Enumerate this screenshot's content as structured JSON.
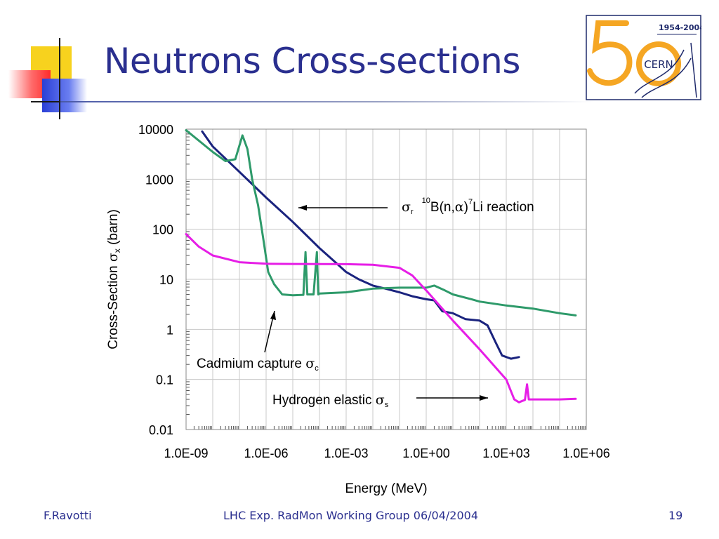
{
  "slide": {
    "title": "Neutrons Cross-sections",
    "footer_left": "F.Ravotti",
    "footer_center": "LHC Exp. RadMon Working Group 06/04/2004",
    "footer_right": "19",
    "title_color": "#2a2f8f",
    "title_rule_color": "#9aa2c4"
  },
  "logo": {
    "years": "1954-2004",
    "number": "50",
    "name": "CERN",
    "accent_color": "#f5a623",
    "ink_color": "#1f2a6b"
  },
  "chart_data": {
    "type": "line",
    "xlabel": "Energy (MeV)",
    "ylabel_main": "Cross-Section ",
    "ylabel_sym": "σ",
    "ylabel_sub": "x",
    "ylabel_tail": " (barn)",
    "x_scale": "log",
    "y_scale": "log",
    "xlim": [
      1e-09,
      1000000.0
    ],
    "ylim": [
      0.01,
      10000
    ],
    "grid": true,
    "x_ticks": [
      {
        "value": 1e-09,
        "label": "1.0E-09"
      },
      {
        "value": 1e-06,
        "label": "1.0E-06"
      },
      {
        "value": 0.001,
        "label": "1.0E-03"
      },
      {
        "value": 1,
        "label": "1.0E+00"
      },
      {
        "value": 1000.0,
        "label": "1.0E+03"
      },
      {
        "value": 1000000.0,
        "label": "1.0E+06"
      }
    ],
    "y_ticks": [
      {
        "value": 0.01,
        "label": "0.01"
      },
      {
        "value": 0.1,
        "label": "0.1"
      },
      {
        "value": 1,
        "label": "1"
      },
      {
        "value": 10,
        "label": "10"
      },
      {
        "value": 100,
        "label": "100"
      },
      {
        "value": 1000,
        "label": "1000"
      },
      {
        "value": 10000,
        "label": "10000"
      }
    ],
    "series": [
      {
        "color": "#1a237e",
        "points": [
          [
            4e-09,
            9000
          ],
          [
            1e-08,
            4500
          ],
          [
            1e-07,
            1400
          ],
          [
            1e-06,
            430
          ],
          [
            1e-05,
            140
          ],
          [
            0.0001,
            42
          ],
          [
            0.0003,
            25
          ],
          [
            0.001,
            14
          ],
          [
            0.003,
            10
          ],
          [
            0.01,
            7.5
          ],
          [
            0.03,
            6.5
          ],
          [
            0.1,
            5.5
          ],
          [
            0.3,
            4.6
          ],
          [
            1,
            4.0
          ],
          [
            2,
            3.8
          ],
          [
            4,
            2.3
          ],
          [
            10,
            2.1
          ],
          [
            30,
            1.6
          ],
          [
            100,
            1.5
          ],
          [
            200,
            1.2
          ],
          [
            400,
            0.55
          ],
          [
            700,
            0.3
          ],
          [
            1500,
            0.26
          ],
          [
            3000,
            0.28
          ]
        ]
      },
      {
        "color": "#2e9a6a",
        "points": [
          [
            1e-09,
            9500
          ],
          [
            1e-08,
            3500
          ],
          [
            3e-08,
            2300
          ],
          [
            7e-08,
            2500
          ],
          [
            1.3e-07,
            7500
          ],
          [
            2e-07,
            4000
          ],
          [
            3e-07,
            1000
          ],
          [
            5e-07,
            300
          ],
          [
            8e-07,
            60
          ],
          [
            1.2e-06,
            14
          ],
          [
            2e-06,
            8
          ],
          [
            4e-06,
            5
          ],
          [
            1e-05,
            4.8
          ],
          [
            2.5e-05,
            4.9
          ],
          [
            3e-05,
            35
          ],
          [
            3.5e-05,
            5
          ],
          [
            6e-05,
            5
          ],
          [
            8e-05,
            35
          ],
          [
            9e-05,
            5
          ],
          [
            0.0001,
            5.2
          ],
          [
            0.001,
            5.5
          ],
          [
            0.01,
            6.5
          ],
          [
            0.1,
            6.8
          ],
          [
            1,
            6.8
          ],
          [
            2,
            7.5
          ],
          [
            5,
            6
          ],
          [
            10,
            5
          ],
          [
            50,
            4
          ],
          [
            100,
            3.6
          ],
          [
            1000,
            3
          ],
          [
            10000,
            2.6
          ],
          [
            100000.0,
            2.1
          ],
          [
            400000.0,
            1.9
          ]
        ]
      },
      {
        "color": "#e61ee6",
        "points": [
          [
            1e-09,
            80
          ],
          [
            3e-09,
            45
          ],
          [
            1e-08,
            30
          ],
          [
            1e-07,
            22
          ],
          [
            1e-06,
            20.5
          ],
          [
            1e-05,
            20.3
          ],
          [
            0.0001,
            20.2
          ],
          [
            0.001,
            20.1
          ],
          [
            0.01,
            19.5
          ],
          [
            0.1,
            17
          ],
          [
            0.3,
            12
          ],
          [
            1,
            6
          ],
          [
            10,
            1.5
          ],
          [
            100,
            0.4
          ],
          [
            1000,
            0.1
          ],
          [
            2000,
            0.04
          ],
          [
            3000,
            0.035
          ],
          [
            5000,
            0.039
          ],
          [
            6000,
            0.08
          ],
          [
            7000,
            0.04
          ],
          [
            100000.0,
            0.04
          ],
          [
            400000.0,
            0.041
          ]
        ]
      }
    ],
    "annotations": {
      "boron": {
        "sym": "σ",
        "sub": "r",
        "sup1": "10",
        "mid": "B(n,",
        "alpha": "α",
        "close": ")",
        "sup2": "7",
        "tail": "Li reaction"
      },
      "cadmium": {
        "main": "Cadmium capture ",
        "sym": "σ",
        "sub": "c"
      },
      "hydrogen": {
        "main": "Hydrogen elastic ",
        "sym": "σ",
        "sub": "s"
      }
    }
  }
}
